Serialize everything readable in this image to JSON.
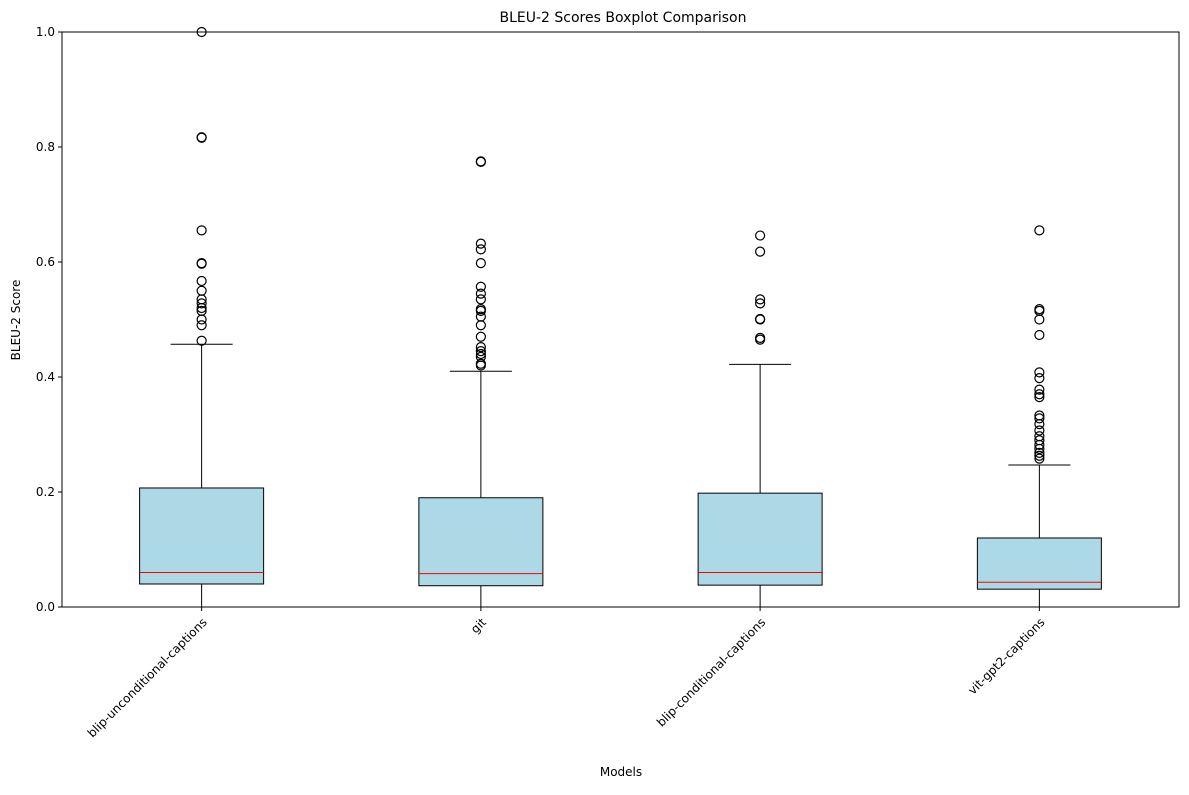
{
  "chart_data": {
    "type": "boxplot",
    "title": "BLEU-2 Scores Boxplot Comparison",
    "xlabel": "Models",
    "ylabel": "BLEU-2 Score",
    "ylim": [
      0,
      1
    ],
    "yticks": [
      "0.0",
      "0.2",
      "0.4",
      "0.6",
      "0.8",
      "1.0"
    ],
    "grid": false,
    "colors": {
      "box_fill": "#add8e6",
      "median": "#ff0000",
      "edge": "#000000"
    },
    "categories": [
      "blip-unconditional-captions",
      "git",
      "blip-conditional-captions",
      "vit-gpt2-captions"
    ],
    "boxes": [
      {
        "whislo": 0.0,
        "q1": 0.04,
        "med": 0.06,
        "q3": 0.207,
        "whishi": 0.457,
        "fliers": [
          0.463,
          0.49,
          0.5,
          0.515,
          0.52,
          0.528,
          0.535,
          0.55,
          0.567,
          0.597,
          0.598,
          0.655,
          0.816,
          0.817,
          1.0
        ]
      },
      {
        "whislo": 0.0,
        "q1": 0.037,
        "med": 0.058,
        "q3": 0.19,
        "whishi": 0.41,
        "fliers": [
          0.42,
          0.423,
          0.435,
          0.44,
          0.445,
          0.452,
          0.47,
          0.49,
          0.505,
          0.515,
          0.518,
          0.535,
          0.545,
          0.557,
          0.598,
          0.622,
          0.632,
          0.774,
          0.775
        ]
      },
      {
        "whislo": 0.0,
        "q1": 0.038,
        "med": 0.06,
        "q3": 0.198,
        "whishi": 0.422,
        "fliers": [
          0.465,
          0.468,
          0.5,
          0.501,
          0.528,
          0.535,
          0.618,
          0.646
        ]
      },
      {
        "whislo": 0.0,
        "q1": 0.031,
        "med": 0.043,
        "q3": 0.12,
        "whishi": 0.247,
        "fliers": [
          0.258,
          0.263,
          0.268,
          0.275,
          0.282,
          0.29,
          0.297,
          0.307,
          0.318,
          0.328,
          0.333,
          0.365,
          0.37,
          0.378,
          0.398,
          0.408,
          0.473,
          0.5,
          0.515,
          0.518,
          0.655
        ]
      }
    ]
  }
}
